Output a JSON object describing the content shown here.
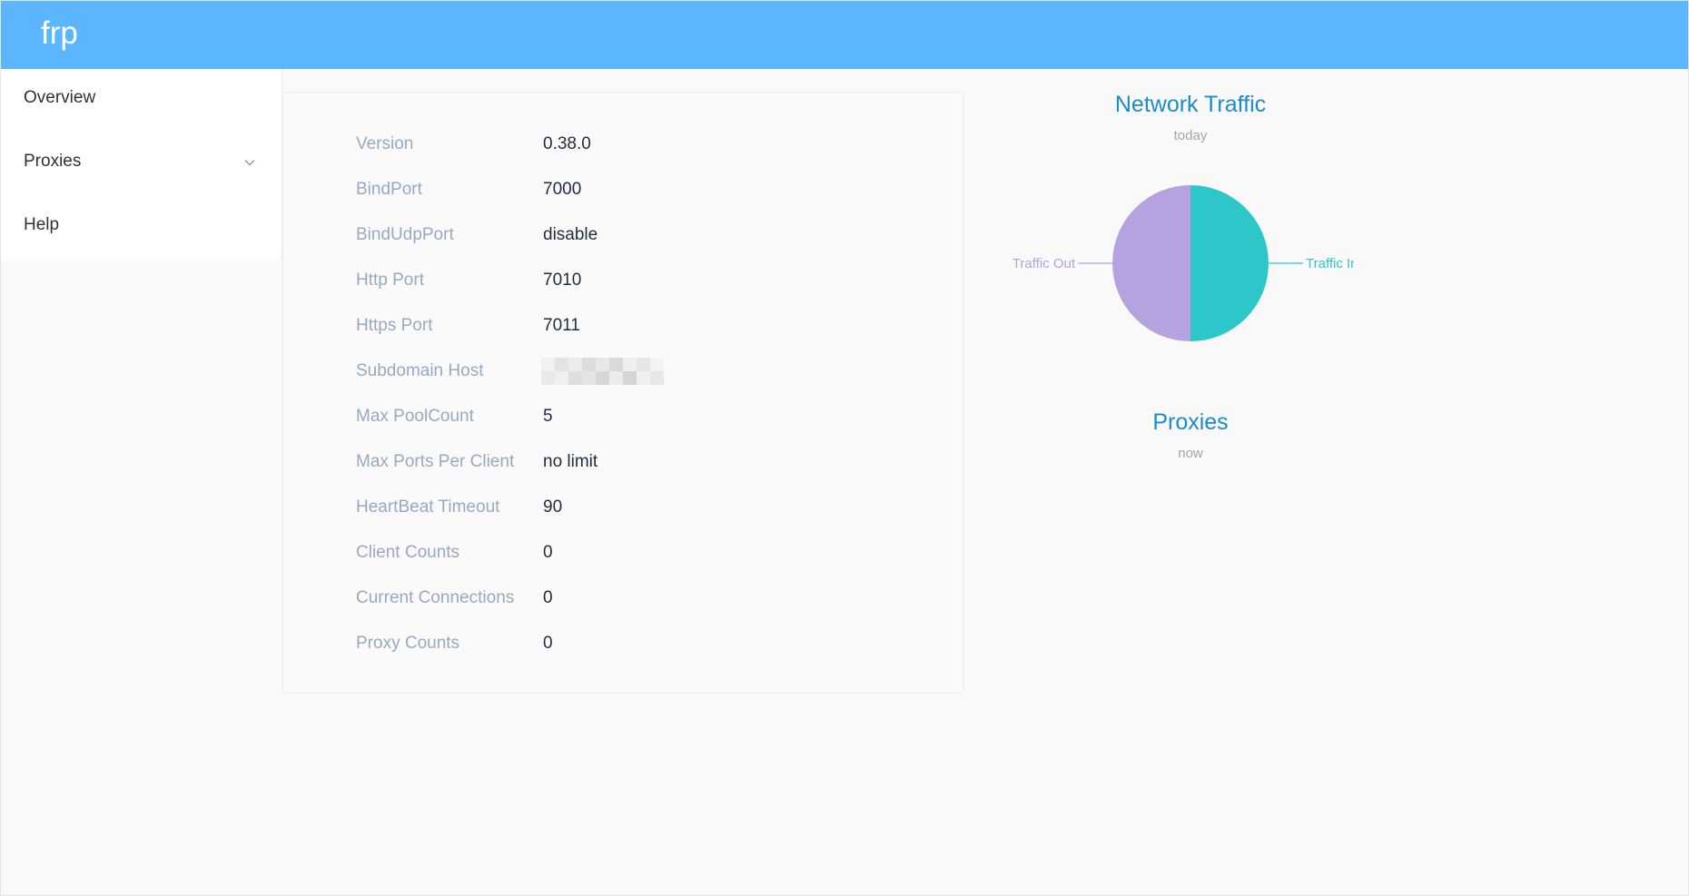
{
  "app": {
    "brand": "frp"
  },
  "sidebar": {
    "items": [
      {
        "label": "Overview",
        "icon": null
      },
      {
        "label": "Proxies",
        "icon": "chevron-down-icon"
      },
      {
        "label": "Help",
        "icon": null
      }
    ]
  },
  "overview": {
    "rows": [
      {
        "label": "Version",
        "value": "0.38.0"
      },
      {
        "label": "BindPort",
        "value": "7000"
      },
      {
        "label": "BindUdpPort",
        "value": "disable"
      },
      {
        "label": "Http Port",
        "value": "7010"
      },
      {
        "label": "Https Port",
        "value": "7011"
      },
      {
        "label": "Subdomain Host",
        "value": ""
      },
      {
        "label": "Max PoolCount",
        "value": "5"
      },
      {
        "label": "Max Ports Per Client",
        "value": "no limit"
      },
      {
        "label": "HeartBeat Timeout",
        "value": "90"
      },
      {
        "label": "Client Counts",
        "value": "0"
      },
      {
        "label": "Current Connections",
        "value": "0"
      },
      {
        "label": "Proxy Counts",
        "value": "0"
      }
    ]
  },
  "charts": {
    "traffic": {
      "title": "Network Traffic",
      "subtitle": "today"
    },
    "proxies": {
      "title": "Proxies",
      "subtitle": "now"
    }
  },
  "chart_data": {
    "type": "pie",
    "title": "Network Traffic",
    "subtitle": "today",
    "slices": [
      {
        "name": "Traffic In",
        "value": 50,
        "color": "#2ec7c9"
      },
      {
        "name": "Traffic Out",
        "value": 50,
        "color": "#b6a2de"
      }
    ]
  },
  "colors": {
    "header": "#5cb6ff",
    "accent": "#1a8ccf",
    "label": "#99a9bf"
  }
}
